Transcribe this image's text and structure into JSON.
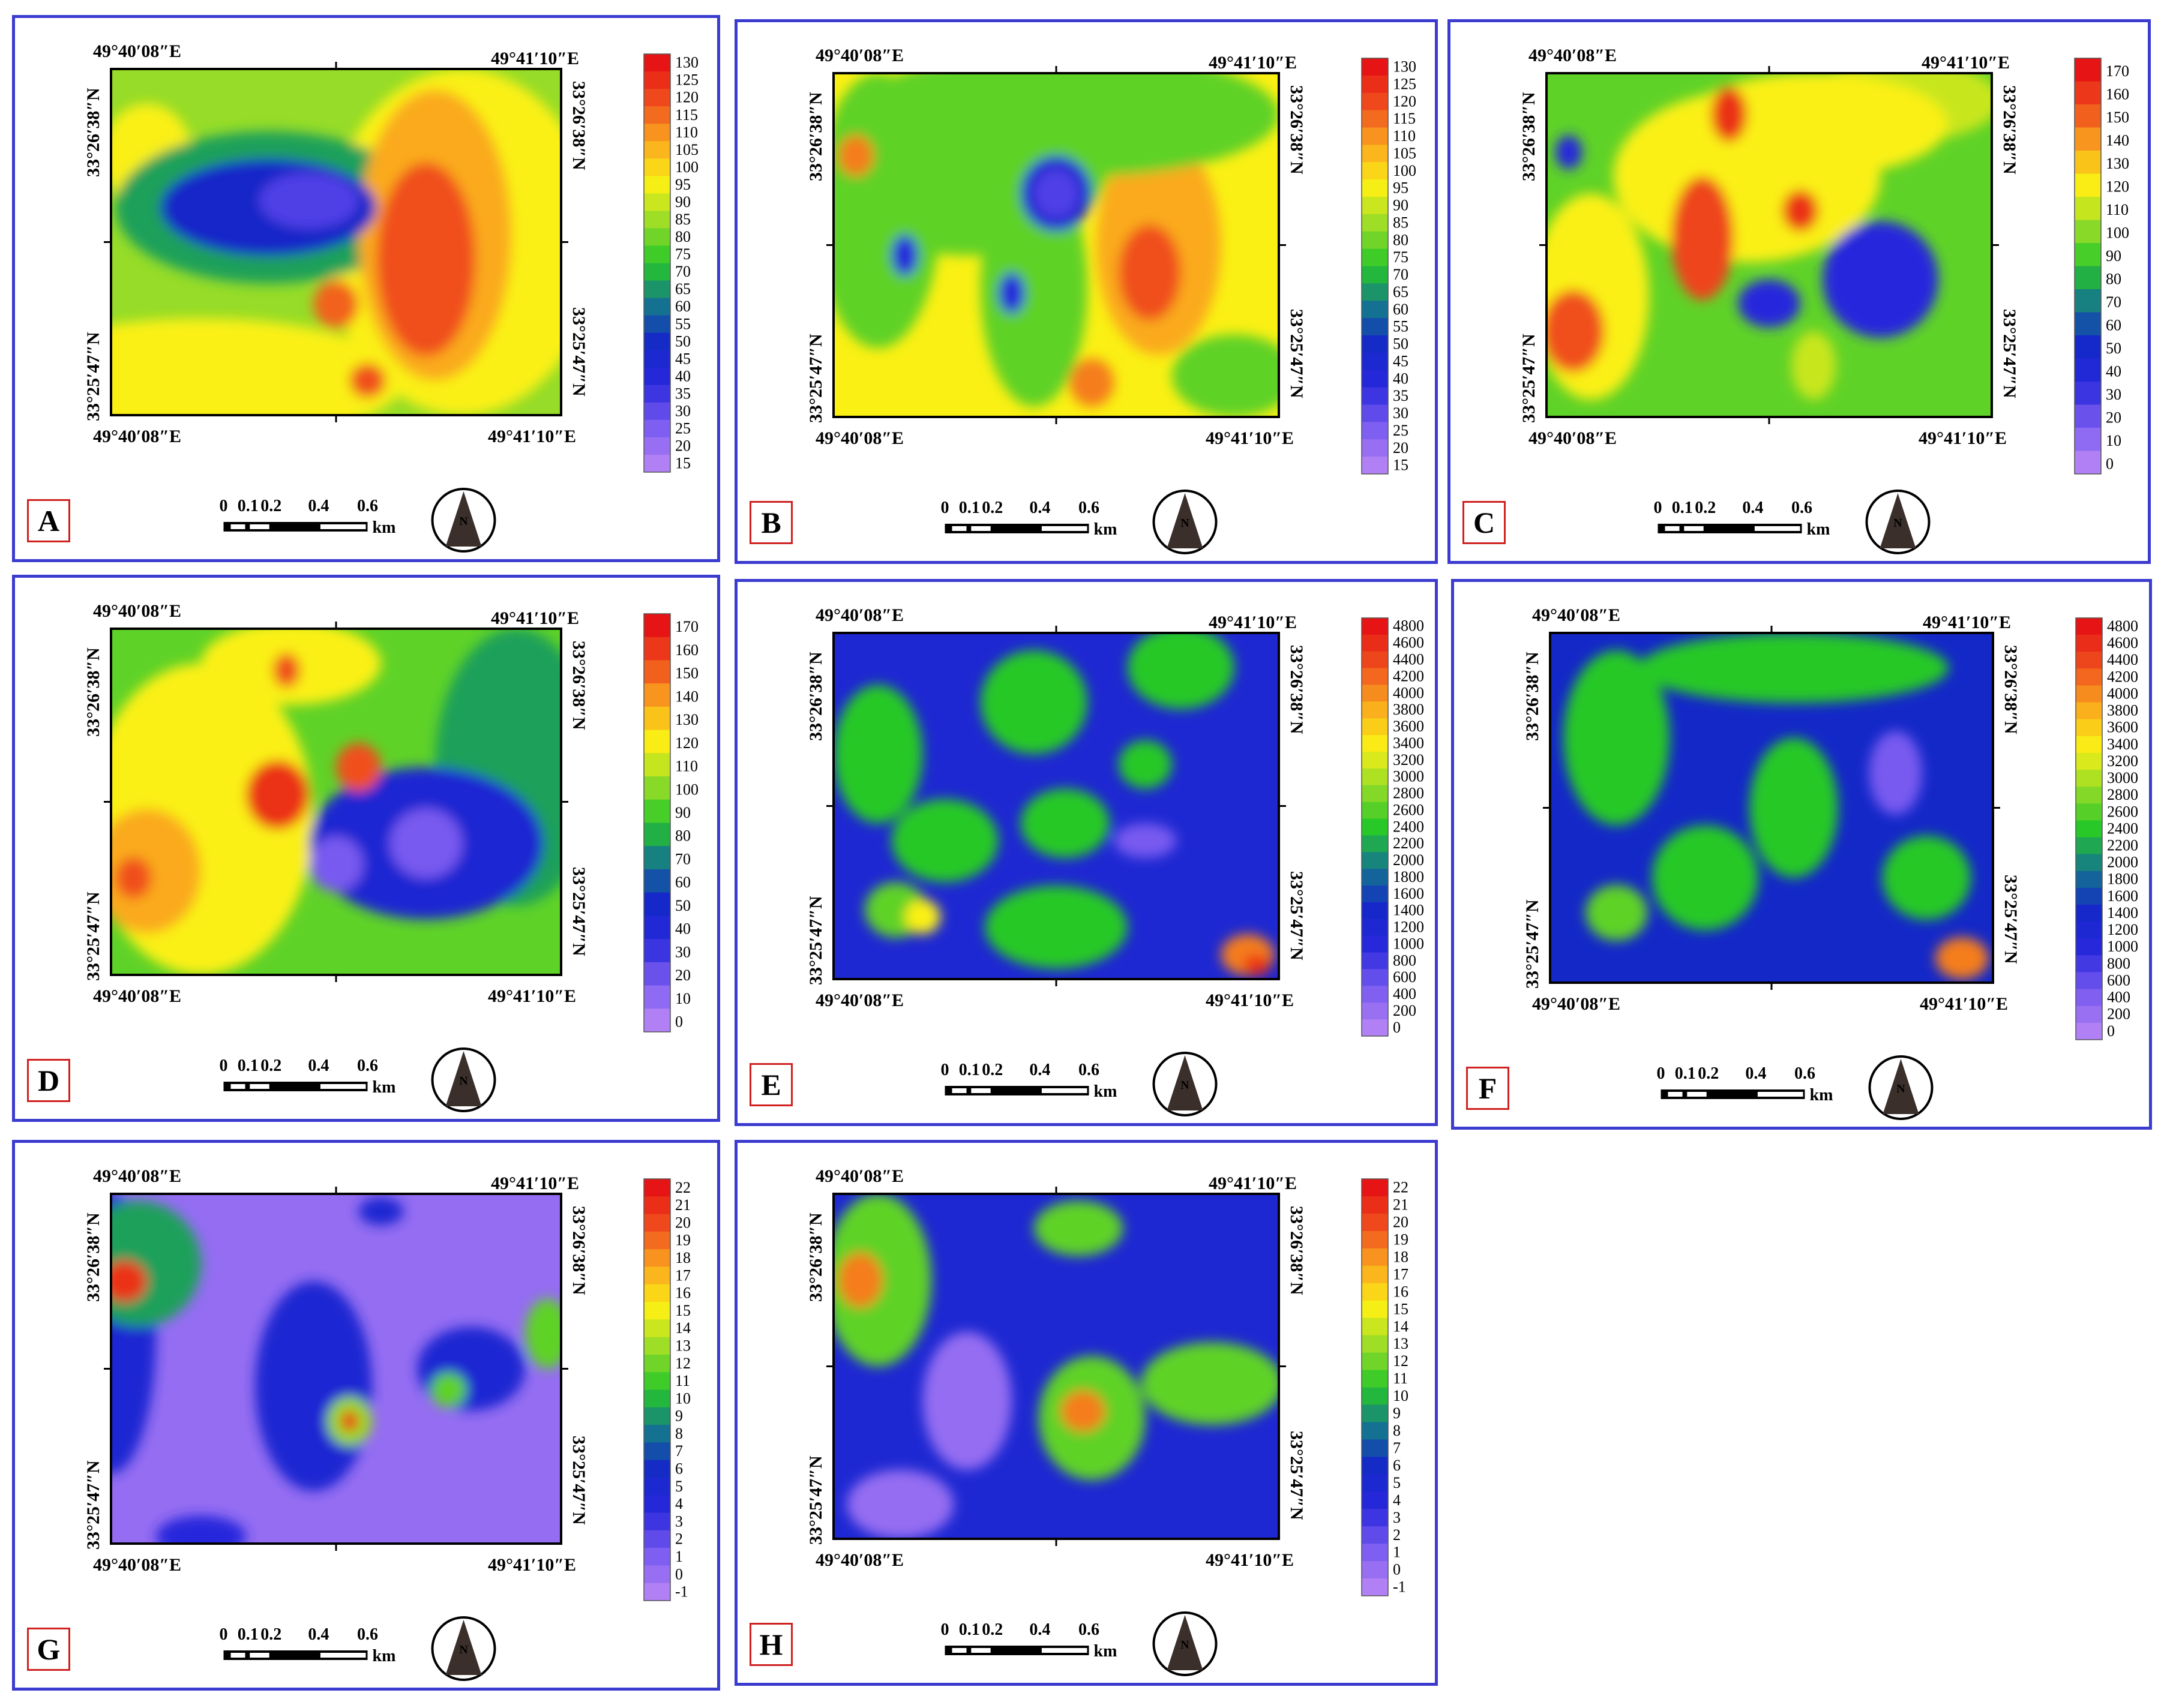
{
  "figure": {
    "coords": {
      "lon_west": "49°40′08″E",
      "lon_east": "49°41′10″E",
      "lat_north": "33°26′38″N",
      "lat_south": "33°25′47″N"
    },
    "scale_bar": {
      "labels": [
        "0",
        "0.1",
        "0.2",
        "0.4",
        "0.6"
      ],
      "unit": "km"
    },
    "north_arrow": "N",
    "colors": {
      "border": "#3b3bd0",
      "label_border": "#d02020"
    }
  },
  "panels": [
    {
      "letter": "A",
      "legend": [
        "130",
        "125",
        "120",
        "115",
        "110",
        "105",
        "100",
        "95",
        "90",
        "85",
        "80",
        "75",
        "70",
        "65",
        "60",
        "55",
        "50",
        "45",
        "40",
        "35",
        "30",
        "25",
        "20",
        "15"
      ]
    },
    {
      "letter": "B",
      "legend": [
        "130",
        "125",
        "120",
        "115",
        "110",
        "105",
        "100",
        "95",
        "90",
        "85",
        "80",
        "75",
        "70",
        "65",
        "60",
        "55",
        "50",
        "45",
        "40",
        "35",
        "30",
        "25",
        "20",
        "15"
      ]
    },
    {
      "letter": "C",
      "legend": [
        "170",
        "160",
        "150",
        "140",
        "130",
        "120",
        "110",
        "100",
        "90",
        "80",
        "70",
        "60",
        "50",
        "40",
        "30",
        "20",
        "10",
        "0"
      ]
    },
    {
      "letter": "D",
      "legend": [
        "170",
        "160",
        "150",
        "140",
        "130",
        "120",
        "110",
        "100",
        "90",
        "80",
        "70",
        "60",
        "50",
        "40",
        "30",
        "20",
        "10",
        "0"
      ]
    },
    {
      "letter": "E",
      "legend": [
        "4800",
        "4600",
        "4400",
        "4200",
        "4000",
        "3800",
        "3600",
        "3400",
        "3200",
        "3000",
        "2800",
        "2600",
        "2400",
        "2200",
        "2000",
        "1800",
        "1600",
        "1400",
        "1200",
        "1000",
        "800",
        "600",
        "400",
        "200",
        "0"
      ]
    },
    {
      "letter": "F",
      "legend": [
        "4800",
        "4600",
        "4400",
        "4200",
        "4000",
        "3800",
        "3600",
        "3400",
        "3200",
        "3000",
        "2800",
        "2600",
        "2400",
        "2200",
        "2000",
        "1800",
        "1600",
        "1400",
        "1200",
        "1000",
        "800",
        "600",
        "400",
        "200",
        "0"
      ]
    },
    {
      "letter": "G",
      "legend": [
        "22",
        "21",
        "20",
        "19",
        "18",
        "17",
        "16",
        "15",
        "14",
        "13",
        "12",
        "11",
        "10",
        "9",
        "8",
        "7",
        "6",
        "5",
        "4",
        "3",
        "2",
        "1",
        "0",
        "-1"
      ]
    },
    {
      "letter": "H",
      "legend": [
        "22",
        "21",
        "20",
        "19",
        "18",
        "17",
        "16",
        "15",
        "14",
        "13",
        "12",
        "11",
        "10",
        "9",
        "8",
        "7",
        "6",
        "5",
        "4",
        "3",
        "2",
        "1",
        "0",
        "-1"
      ]
    }
  ]
}
